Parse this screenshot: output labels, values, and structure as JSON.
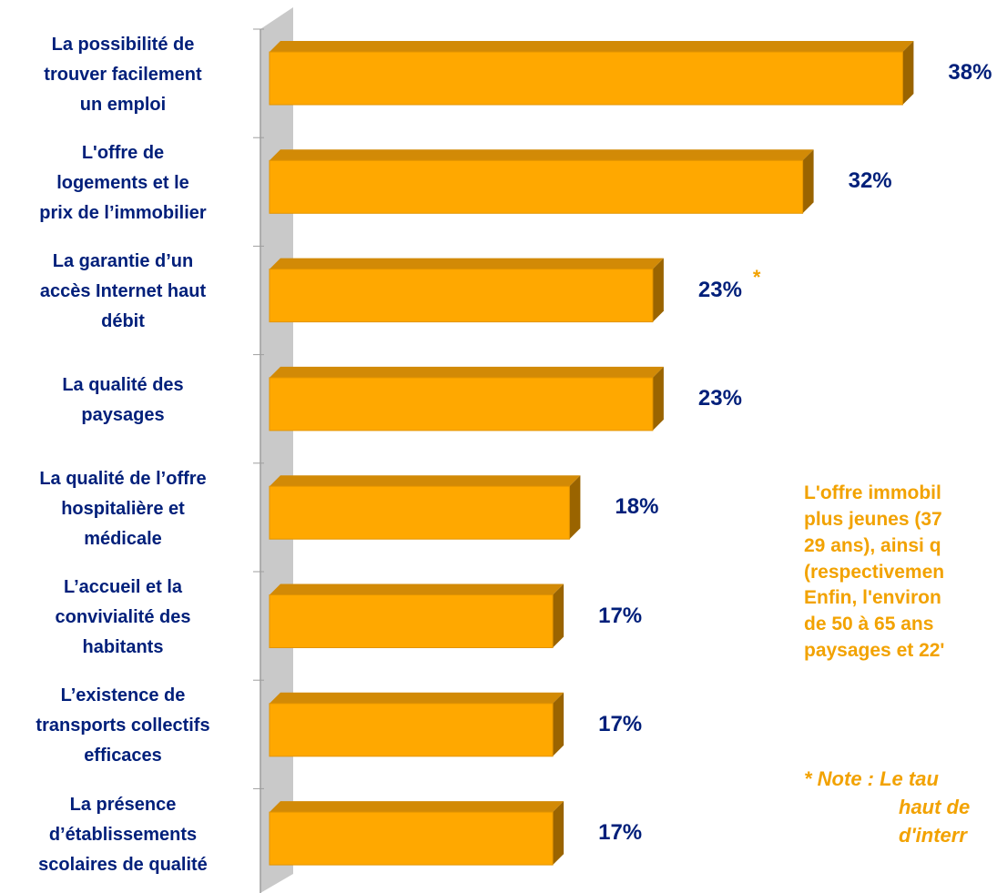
{
  "chart_data": {
    "type": "bar",
    "orientation": "horizontal",
    "categories": [
      "La possibilité de\ntrouver facilement\nun emploi",
      "L'offre de\nlogements et le\nprix de l’immobilier",
      "La garantie d’un\naccès Internet haut\ndébit",
      "La qualité des\npaysages",
      "La qualité de l’offre\nhospitalière et\nmédicale",
      "L’accueil et la\nconvivialité des\nhabitants",
      "L’existence de\ntransports collectifs\nefficaces",
      "La présence\nd’établissements\nscolaires de qualité"
    ],
    "values": [
      38,
      32,
      23,
      23,
      18,
      17,
      17,
      17
    ],
    "value_labels": [
      "38%",
      "32%",
      "23%",
      "23%",
      "18%",
      "17%",
      "17%",
      "17%"
    ],
    "annotations": [
      {
        "category_index": 2,
        "text": "*"
      }
    ],
    "grid": false,
    "legend": "none"
  },
  "colors": {
    "bar_front": "#ffa800",
    "bar_top": "#d28a06",
    "bar_side": "#9a6400",
    "labels": "#001f7a",
    "commentary": "#f2a200",
    "axis_wall": "#c9c9c9"
  },
  "commentary": {
    "paragraph1": [
      "L'offre immobil",
      "plus jeunes (37",
      "29 ans), ainsi q",
      "(respectivemen"
    ],
    "paragraph2": [
      "Enfin, l'environ",
      "de 50 à 65 ans",
      "paysages et 22'"
    ],
    "note": [
      "* Note : Le tau",
      "haut de",
      "d'interr"
    ]
  }
}
